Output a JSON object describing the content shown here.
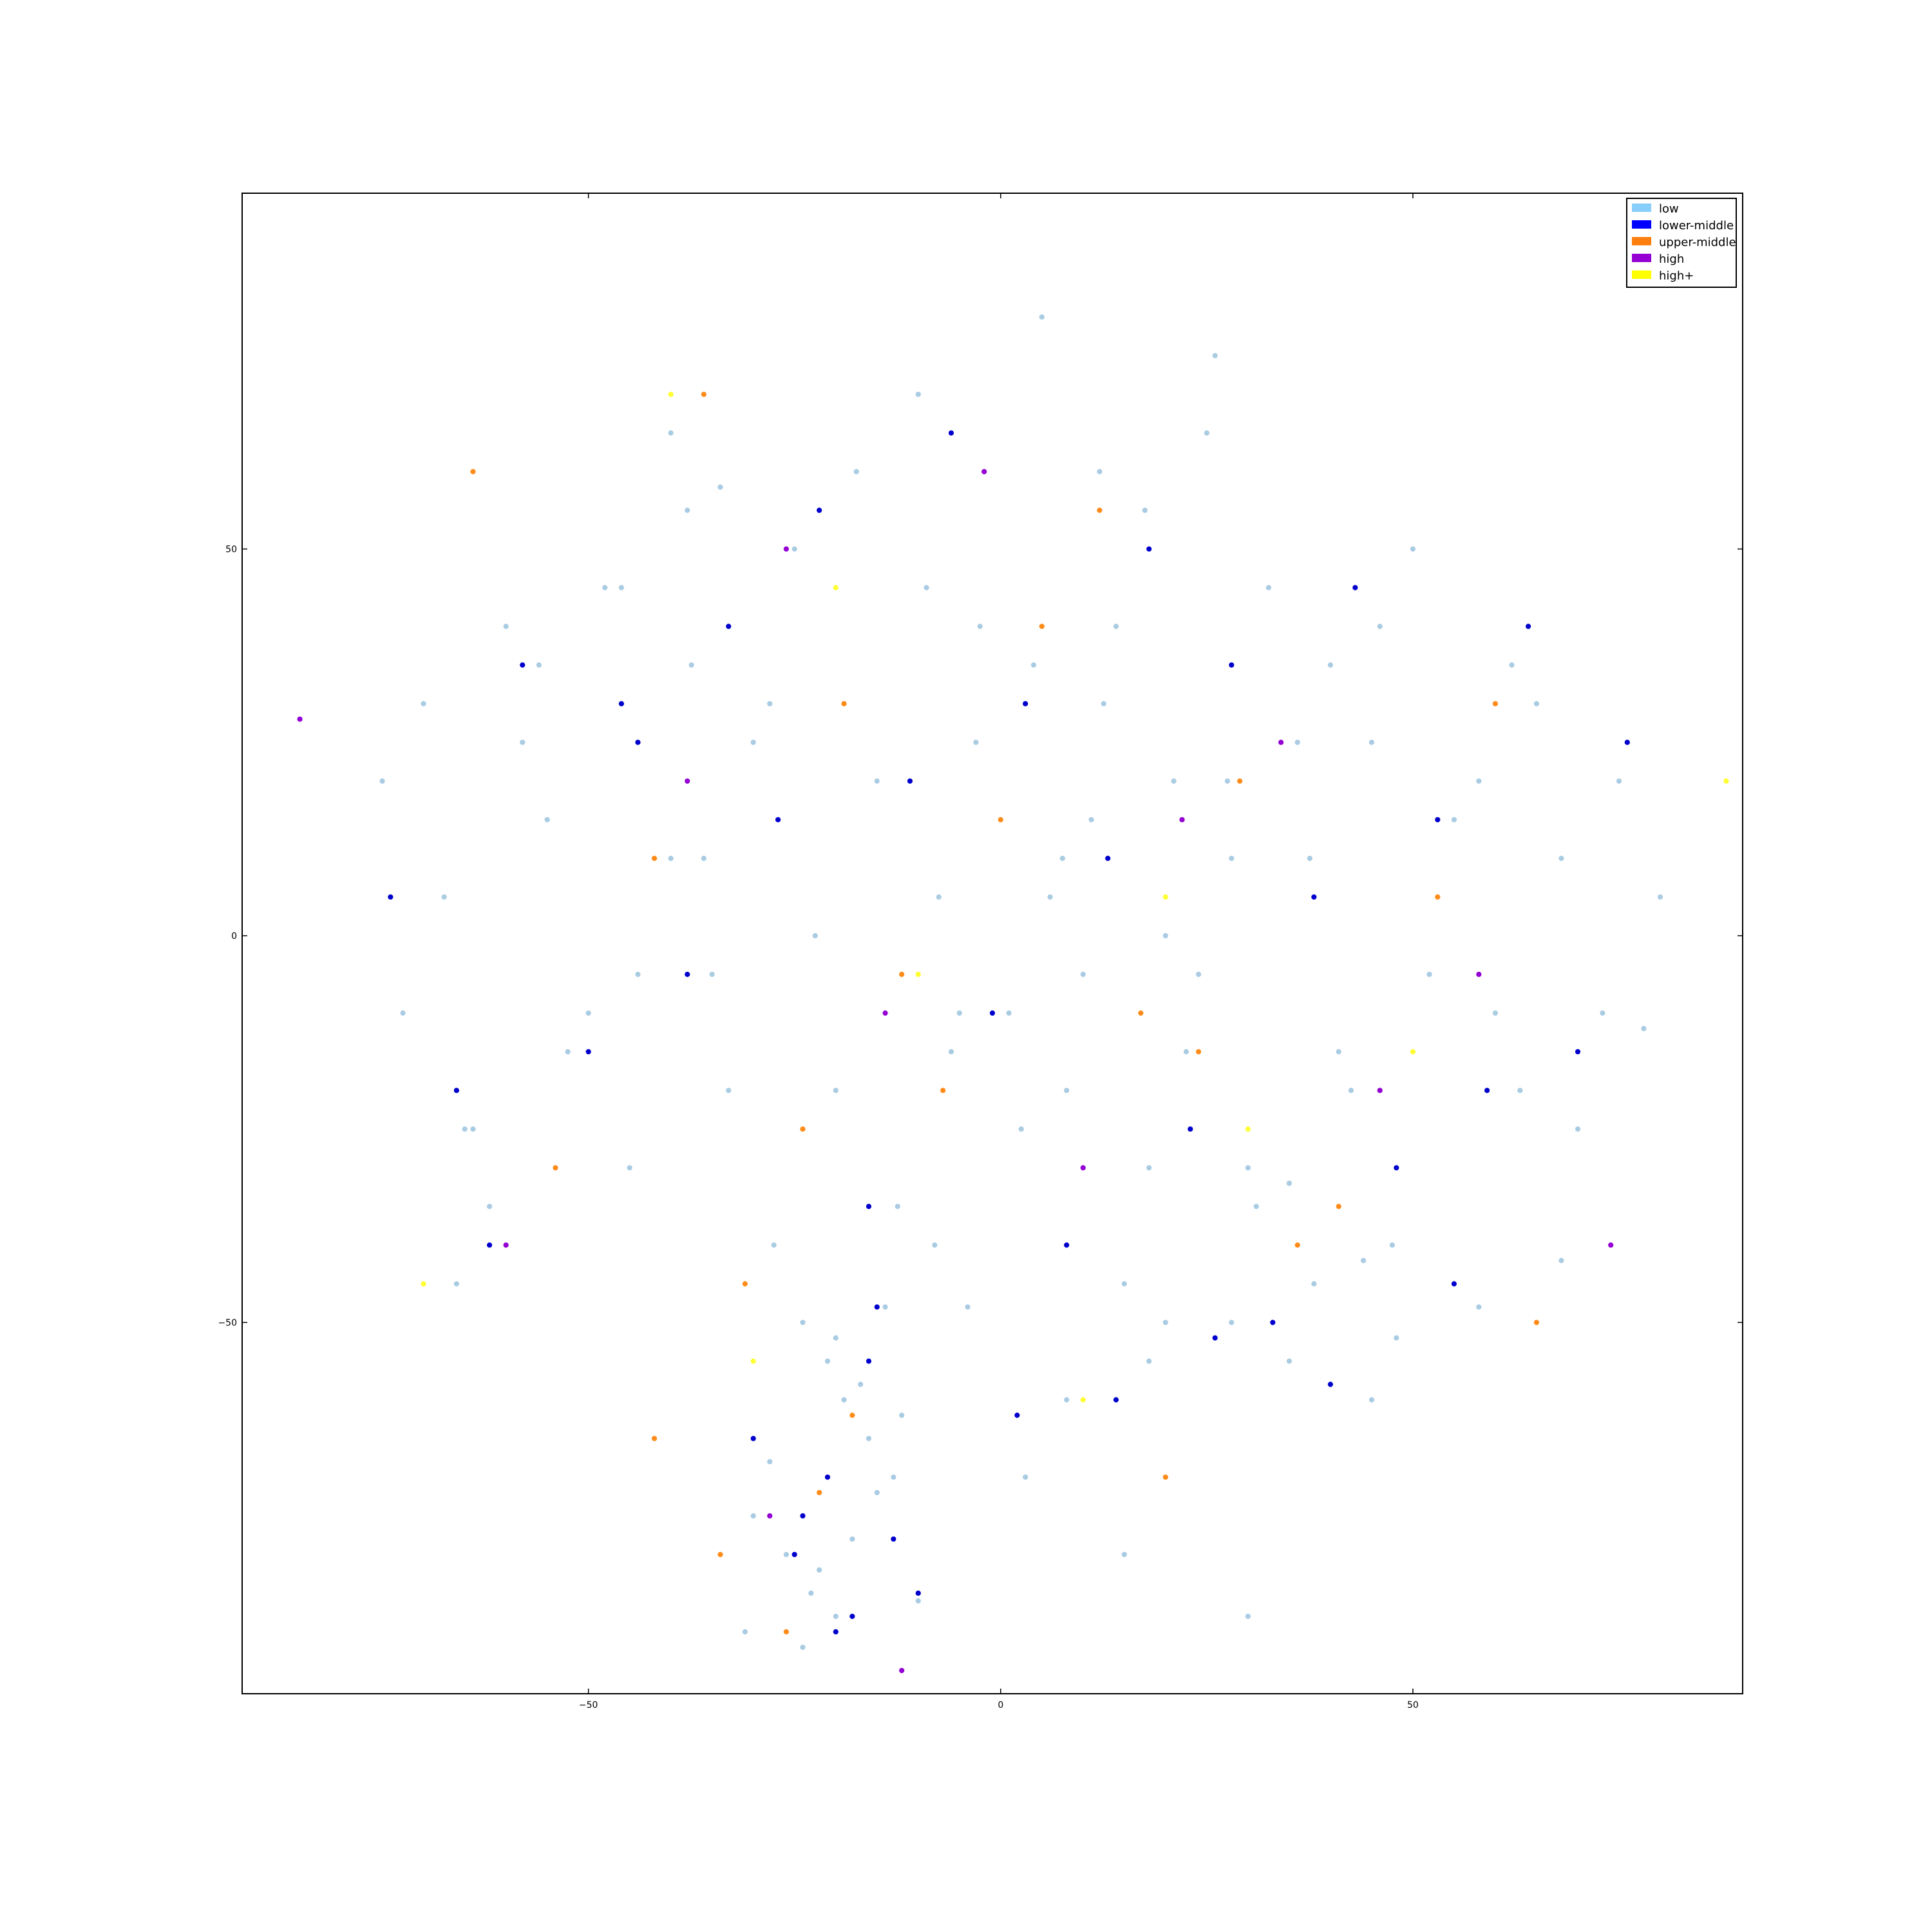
{
  "chart_data": {
    "type": "scatter",
    "title": "",
    "xlabel": "",
    "ylabel": "",
    "xlim": [
      -92,
      90
    ],
    "ylim": [
      -98,
      96
    ],
    "xticks": [
      -50,
      0,
      50
    ],
    "yticks": [
      50,
      0,
      -50
    ],
    "xtick_labels": [
      "−50",
      "0",
      "50"
    ],
    "ytick_labels": [
      "50",
      "0",
      "−50"
    ],
    "grid": false,
    "legend_position": "top-right",
    "series": [
      {
        "name": "low",
        "color": "#A9CCE3",
        "legend_color": "#87CEFA",
        "x": [
          -75.0,
          -72.5,
          -70.0,
          -67.5,
          -65.0,
          -60.0,
          -55.0,
          -52.5,
          -48.0,
          -45.0,
          -40.0,
          -37.5,
          -35.0,
          -30.0,
          -27.5,
          -25.0,
          -22.5,
          -20.0,
          -17.5,
          -15.0,
          -12.5,
          -10.0,
          -7.5,
          -5.0,
          -2.5,
          0.0,
          2.5,
          5.0,
          7.5,
          10.0,
          12.5,
          15.0,
          17.5,
          20.0,
          22.5,
          25.0,
          27.5,
          30.0,
          32.5,
          35.0,
          37.5,
          40.0,
          42.5,
          45.0,
          47.5,
          50.0,
          55.0,
          60.0,
          65.0,
          70.0,
          75.0,
          80.0,
          -62.0,
          -58.0,
          -44.0,
          -38.0,
          -33.0,
          -28.0,
          -24.0,
          -21.0,
          -19.0,
          -16.0,
          -13.0,
          -9.0,
          -6.0,
          -3.0,
          1.0,
          4.0,
          6.0,
          8.0,
          11.0,
          14.0,
          18.0,
          21.0,
          24.0,
          28.0,
          31.0,
          36.0,
          41.0,
          46.0,
          52.0,
          58.0,
          63.0,
          68.0,
          73.0,
          -30.0,
          -26.0,
          -23.0,
          -20.0,
          -18.0,
          -15.0,
          -12.0,
          -28.0,
          -22.0,
          -17.0,
          -24.0,
          -14.0,
          -31.0,
          -20.0,
          -10.0,
          8.0,
          18.0,
          28.0,
          38.0,
          48.0,
          58.0,
          68.0,
          -66.0,
          -50.0,
          -36.0,
          -8.0,
          -64.0,
          -56.0,
          -46.0,
          -34.0,
          -4.0,
          12.0,
          26.0,
          44.0,
          62.0,
          78.0,
          15.0,
          30.0,
          45.0,
          3.0,
          -40.0,
          20.0,
          35.0
        ],
        "y": [
          20.0,
          -10.0,
          30.0,
          5.0,
          -25.0,
          40.0,
          15.0,
          -15.0,
          45.0,
          -30.0,
          10.0,
          35.0,
          -5.0,
          25.0,
          -40.0,
          50.0,
          0.0,
          -20.0,
          60.0,
          20.0,
          -35.0,
          70.0,
          5.0,
          -10.0,
          40.0,
          15.0,
          -25.0,
          80.0,
          10.0,
          -5.0,
          30.0,
          -45.0,
          55.0,
          0.0,
          -15.0,
          65.0,
          20.0,
          -30.0,
          45.0,
          -55.0,
          10.0,
          35.0,
          -20.0,
          25.0,
          -40.0,
          50.0,
          15.0,
          -10.0,
          30.0,
          -25.0,
          20.0,
          5.0,
          -35.0,
          25.0,
          -5.0,
          55.0,
          -20.0,
          30.0,
          -50.0,
          -55.0,
          -60.0,
          -65.0,
          -70.0,
          45.0,
          -15.0,
          25.0,
          -10.0,
          35.0,
          5.0,
          -20.0,
          15.0,
          40.0,
          -30.0,
          20.0,
          -5.0,
          10.0,
          -35.0,
          25.0,
          -15.0,
          40.0,
          -5.0,
          20.0,
          -20.0,
          10.0,
          -10.0,
          -75.0,
          -80.0,
          -85.0,
          -88.0,
          -78.0,
          -72.0,
          -62.0,
          -68.0,
          -82.0,
          -58.0,
          -92.0,
          -48.0,
          -90.0,
          -52.0,
          -86.0,
          -60.0,
          -55.0,
          -50.0,
          -45.0,
          -52.0,
          -48.0,
          -42.0,
          -45.0,
          -10.0,
          10.0,
          -40.0,
          -25.0,
          35.0,
          45.0,
          58.0,
          -48.0,
          60.0,
          75.0,
          -42.0,
          35.0,
          -12.0,
          -80.0,
          -88.0,
          -60.0,
          -70.0,
          65.0,
          -50.0,
          -32.0
        ]
      },
      {
        "name": "lower-middle",
        "color": "#0000CD",
        "legend_color": "#0000FF",
        "x": [
          -74.0,
          -66.0,
          -58.0,
          -50.0,
          -44.0,
          -38.0,
          -33.0,
          -27.0,
          -22.0,
          -16.0,
          -11.0,
          -6.0,
          -1.0,
          3.0,
          8.0,
          13.0,
          18.0,
          23.0,
          28.0,
          33.0,
          38.0,
          43.0,
          48.0,
          53.0,
          59.0,
          64.0,
          70.0,
          76.0,
          -62.0,
          -46.0,
          -30.0,
          -24.0,
          -20.0,
          -15.0,
          -10.0,
          2.0,
          14.0,
          26.0,
          40.0,
          55.0,
          -16.0,
          -21.0,
          -25.0,
          -18.0,
          -13.0
        ],
        "y": [
          5.0,
          -20.0,
          35.0,
          -15.0,
          25.0,
          -5.0,
          40.0,
          15.0,
          55.0,
          -35.0,
          20.0,
          65.0,
          -10.0,
          30.0,
          -40.0,
          10.0,
          50.0,
          -25.0,
          35.0,
          -50.0,
          5.0,
          45.0,
          -30.0,
          15.0,
          -20.0,
          40.0,
          -15.0,
          25.0,
          -40.0,
          30.0,
          -65.0,
          -75.0,
          -90.0,
          -48.0,
          -85.0,
          -62.0,
          -60.0,
          -52.0,
          -58.0,
          -45.0,
          -55.0,
          -70.0,
          -80.0,
          -88.0,
          -78.0
        ]
      },
      {
        "name": "upper-middle",
        "color": "#FF8C1A",
        "legend_color": "#FF7F0E",
        "x": [
          -64.0,
          -54.0,
          -42.0,
          -31.0,
          -19.0,
          -7.0,
          5.0,
          17.0,
          29.0,
          41.0,
          53.0,
          65.0,
          -36.0,
          -12.0,
          12.0,
          36.0,
          60.0,
          -24.0,
          0.0,
          24.0,
          -26.0,
          -18.0,
          -34.0,
          -22.0,
          -42.0,
          20.0
        ],
        "y": [
          60.0,
          -30.0,
          10.0,
          -45.0,
          30.0,
          -20.0,
          40.0,
          -10.0,
          20.0,
          -35.0,
          5.0,
          -50.0,
          70.0,
          -5.0,
          55.0,
          -40.0,
          30.0,
          -25.0,
          15.0,
          -15.0,
          -90.0,
          -62.0,
          -80.0,
          -72.0,
          -65.0,
          -70.0
        ]
      },
      {
        "name": "high",
        "color": "#9400D3",
        "legend_color": "#9400D3",
        "x": [
          -85.0,
          -60.0,
          -38.0,
          -14.0,
          10.0,
          34.0,
          58.0,
          74.0,
          -26.0,
          -2.0,
          22.0,
          46.0,
          -12.0,
          -28.0
        ],
        "y": [
          28.0,
          -40.0,
          20.0,
          -10.0,
          -30.0,
          25.0,
          -5.0,
          -40.0,
          50.0,
          60.0,
          15.0,
          -20.0,
          -95.0,
          -75.0
        ]
      },
      {
        "name": "high+",
        "color": "#FFFF33",
        "legend_color": "#FFFF00",
        "x": [
          -70.0,
          -40.0,
          -10.0,
          20.0,
          50.0,
          88.0,
          30.0,
          -20.0,
          10.0,
          -30.0
        ],
        "y": [
          -45.0,
          70.0,
          -5.0,
          5.0,
          -15.0,
          20.0,
          -25.0,
          45.0,
          -60.0,
          -55.0
        ]
      }
    ]
  }
}
